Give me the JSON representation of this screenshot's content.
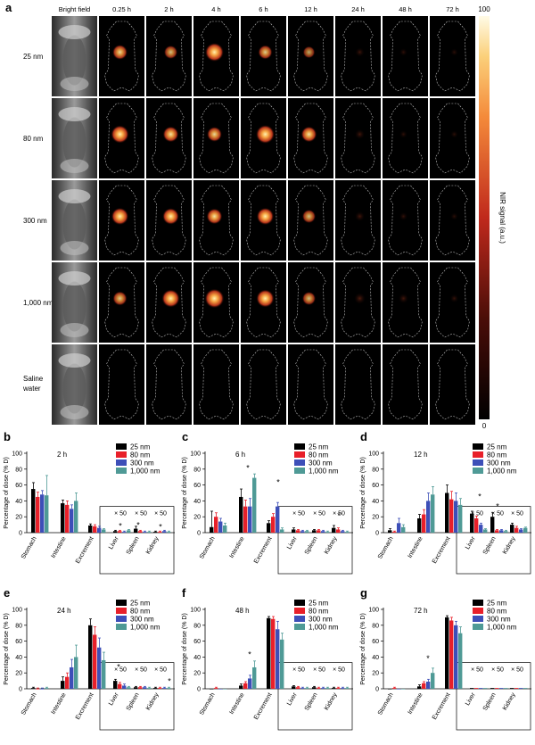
{
  "panel_a": {
    "letter": "a",
    "columns": [
      "Bright field",
      "0.25 h",
      "2 h",
      "4 h",
      "6 h",
      "12 h",
      "24 h",
      "48 h",
      "72 h"
    ],
    "rows": [
      "25 nm",
      "80 nm",
      "300 nm",
      "1,000 nm",
      "Saline water"
    ],
    "colorbar": {
      "label": "NIR signal (a.u.)",
      "max": "100",
      "min": "0"
    }
  },
  "legend_series": [
    "25 nm",
    "80 nm",
    "300 nm",
    "1,000 nm"
  ],
  "colors": {
    "s0": "#000000",
    "s1": "#e8202a",
    "s2": "#3d4fb8",
    "s3": "#4f9a96"
  },
  "chart_data": [
    {
      "type": "bar",
      "letter": "b",
      "title": "2 h",
      "ylabel": "Percentage of dose (% D)",
      "ylim": [
        0,
        100
      ],
      "yticks": [
        0,
        20,
        40,
        60,
        80,
        100
      ],
      "categories": [
        "Stomach",
        "Intestine",
        "Excrement",
        "Liver",
        "Spleen",
        "Kidney"
      ],
      "inset_label": "× 50",
      "series": [
        {
          "name": "25 nm",
          "values": [
            55,
            37,
            9,
            2,
            5,
            1
          ],
          "err": [
            8,
            4,
            2,
            1,
            3,
            1
          ]
        },
        {
          "name": "80 nm",
          "values": [
            45,
            35,
            8,
            2,
            2,
            1
          ],
          "err": [
            6,
            5,
            2,
            1,
            1,
            1
          ]
        },
        {
          "name": "300 nm",
          "values": [
            48,
            30,
            6,
            1,
            1,
            2
          ],
          "err": [
            5,
            5,
            2,
            1,
            1,
            1
          ]
        },
        {
          "name": "1,000 nm",
          "values": [
            47,
            40,
            4,
            3,
            1,
            1
          ],
          "err": [
            25,
            10,
            1,
            1,
            1,
            1
          ]
        }
      ],
      "significance": [
        "*",
        "*",
        "*"
      ]
    },
    {
      "type": "bar",
      "letter": "c",
      "title": "6 h",
      "ylabel": "Percentage of dose (% D)",
      "ylim": [
        0,
        100
      ],
      "yticks": [
        0,
        20,
        40,
        60,
        80,
        100
      ],
      "categories": [
        "Stomach",
        "Intestine",
        "Excrement",
        "Liver",
        "Spleen",
        "Kidney"
      ],
      "inset_label": "× 50",
      "series": [
        {
          "name": "25 nm",
          "values": [
            7,
            45,
            12,
            4,
            3,
            6
          ],
          "err": [
            20,
            10,
            3,
            2,
            1,
            3
          ]
        },
        {
          "name": "80 nm",
          "values": [
            20,
            33,
            20,
            3,
            3,
            4
          ],
          "err": [
            5,
            8,
            4,
            1,
            1,
            2
          ]
        },
        {
          "name": "300 nm",
          "values": [
            14,
            33,
            33,
            2,
            2,
            2
          ],
          "err": [
            4,
            10,
            5,
            1,
            1,
            1
          ]
        },
        {
          "name": "1,000 nm",
          "values": [
            9,
            69,
            4,
            2,
            1,
            1
          ],
          "err": [
            3,
            5,
            2,
            1,
            1,
            1
          ]
        }
      ],
      "significance": [
        "*",
        "*",
        "*"
      ]
    },
    {
      "type": "bar",
      "letter": "d",
      "title": "12 h",
      "ylabel": "Percentage of dose (% D)",
      "ylim": [
        0,
        100
      ],
      "yticks": [
        0,
        20,
        40,
        60,
        80,
        100
      ],
      "categories": [
        "Stomach",
        "Intestine",
        "Excrement",
        "Liver",
        "Spleen",
        "Kidney"
      ],
      "inset_label": "× 50",
      "series": [
        {
          "name": "25 nm",
          "values": [
            3,
            18,
            50,
            24,
            20,
            10
          ],
          "err": [
            2,
            5,
            10,
            3,
            5,
            2
          ]
        },
        {
          "name": "80 nm",
          "values": [
            1,
            23,
            42,
            18,
            3,
            6
          ],
          "err": [
            1,
            6,
            10,
            3,
            1,
            2
          ]
        },
        {
          "name": "300 nm",
          "values": [
            12,
            40,
            40,
            10,
            3,
            4
          ],
          "err": [
            6,
            10,
            10,
            2,
            1,
            1
          ]
        },
        {
          "name": "1,000 nm",
          "values": [
            7,
            48,
            35,
            4,
            2,
            6
          ],
          "err": [
            3,
            10,
            8,
            1,
            1,
            1
          ]
        }
      ],
      "significance": [
        "*",
        "*"
      ]
    },
    {
      "type": "bar",
      "letter": "e",
      "title": "24 h",
      "ylabel": "Percentage of dose (% D)",
      "ylim": [
        0,
        100
      ],
      "yticks": [
        0,
        20,
        40,
        60,
        80,
        100
      ],
      "categories": [
        "Stomach",
        "Intestine",
        "Excrement",
        "Liver",
        "Spleen",
        "Kidney"
      ],
      "inset_label": "× 50",
      "series": [
        {
          "name": "25 nm",
          "values": [
            1,
            10,
            80,
            10,
            2,
            1
          ],
          "err": [
            1,
            5,
            8,
            2,
            1,
            1
          ]
        },
        {
          "name": "80 nm",
          "values": [
            0,
            15,
            68,
            6,
            2,
            1
          ],
          "err": [
            1,
            5,
            10,
            2,
            1,
            1
          ]
        },
        {
          "name": "300 nm",
          "values": [
            0,
            27,
            52,
            4,
            2,
            1
          ],
          "err": [
            1,
            10,
            12,
            2,
            1,
            1
          ]
        },
        {
          "name": "1,000 nm",
          "values": [
            1,
            40,
            36,
            2,
            1,
            1
          ],
          "err": [
            1,
            15,
            10,
            1,
            1,
            1
          ]
        }
      ],
      "significance": [
        "*",
        "*"
      ]
    },
    {
      "type": "bar",
      "letter": "f",
      "title": "48 h",
      "ylabel": "Percentage of dose (% D)",
      "ylim": [
        0,
        100
      ],
      "yticks": [
        0,
        20,
        40,
        60,
        80,
        100
      ],
      "categories": [
        "Stomach",
        "Intestine",
        "Excrement",
        "Liver",
        "Spleen",
        "Kidney"
      ],
      "inset_label": "× 50",
      "series": [
        {
          "name": "25 nm",
          "values": [
            0,
            4,
            89,
            3,
            2,
            1
          ],
          "err": [
            0,
            2,
            2,
            1,
            1,
            1
          ]
        },
        {
          "name": "80 nm",
          "values": [
            1,
            7,
            88,
            2,
            1,
            1
          ],
          "err": [
            1,
            2,
            3,
            1,
            1,
            1
          ]
        },
        {
          "name": "300 nm",
          "values": [
            0,
            13,
            75,
            1,
            1,
            1
          ],
          "err": [
            0,
            4,
            10,
            1,
            1,
            1
          ]
        },
        {
          "name": "1,000 nm",
          "values": [
            0,
            27,
            62,
            1,
            1,
            1
          ],
          "err": [
            0,
            8,
            8,
            1,
            1,
            1
          ]
        }
      ],
      "significance": [
        "*"
      ]
    },
    {
      "type": "bar",
      "letter": "g",
      "title": "72 h",
      "ylabel": "Percentage of dose (% D)",
      "ylim": [
        0,
        100
      ],
      "yticks": [
        0,
        20,
        40,
        60,
        80,
        100
      ],
      "categories": [
        "Stomach",
        "Intestine",
        "Excrement",
        "Liver",
        "Spleen",
        "Kidney"
      ],
      "inset_label": "× 50",
      "series": [
        {
          "name": "25 nm",
          "values": [
            0,
            3,
            90,
            1,
            1,
            1
          ],
          "err": [
            0,
            2,
            2,
            0,
            0,
            0
          ]
        },
        {
          "name": "80 nm",
          "values": [
            1,
            7,
            86,
            1,
            1,
            1
          ],
          "err": [
            1,
            2,
            4,
            0,
            0,
            0
          ]
        },
        {
          "name": "300 nm",
          "values": [
            0,
            9,
            80,
            1,
            1,
            1
          ],
          "err": [
            0,
            3,
            5,
            0,
            0,
            0
          ]
        },
        {
          "name": "1,000 nm",
          "values": [
            0,
            20,
            70,
            1,
            1,
            1
          ],
          "err": [
            0,
            6,
            8,
            0,
            0,
            0
          ]
        }
      ],
      "significance": [
        "*"
      ]
    }
  ]
}
